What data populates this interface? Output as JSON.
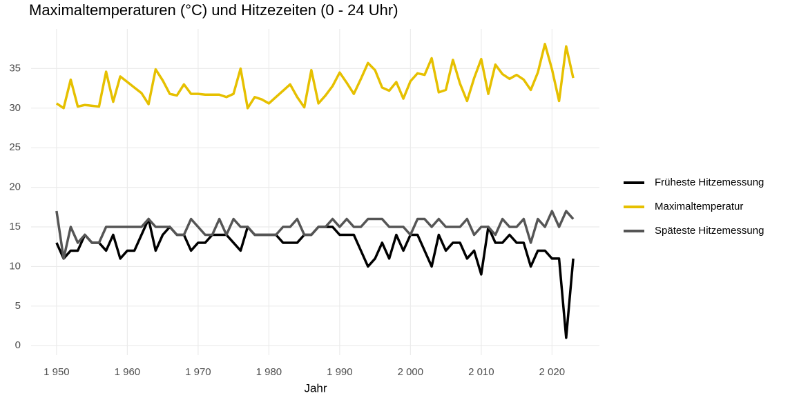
{
  "chart_data": {
    "type": "line",
    "title": "Maximaltemperaturen (°C) und Hitzezeiten (0 - 24 Uhr)",
    "x_label": "Jahr",
    "x": [
      1950,
      1951,
      1952,
      1953,
      1954,
      1955,
      1956,
      1957,
      1958,
      1959,
      1960,
      1961,
      1962,
      1963,
      1964,
      1965,
      1966,
      1967,
      1968,
      1969,
      1970,
      1971,
      1972,
      1973,
      1974,
      1975,
      1976,
      1977,
      1978,
      1979,
      1980,
      1981,
      1982,
      1983,
      1984,
      1985,
      1986,
      1987,
      1988,
      1989,
      1990,
      1991,
      1992,
      1993,
      1994,
      1995,
      1996,
      1997,
      1998,
      1999,
      2000,
      2001,
      2002,
      2003,
      2004,
      2005,
      2006,
      2007,
      2008,
      2009,
      2010,
      2011,
      2012,
      2013,
      2014,
      2015,
      2016,
      2017,
      2018,
      2019,
      2020,
      2021,
      2022,
      2023
    ],
    "series": [
      {
        "name": "Früheste Hitzemessung",
        "color": "#000000",
        "values": [
          13,
          11,
          12,
          12,
          14,
          13,
          13,
          12,
          14,
          11,
          12,
          12,
          14,
          16,
          12,
          14,
          15,
          14,
          14,
          12,
          13,
          13,
          14,
          14,
          14,
          13,
          12,
          15,
          14,
          14,
          14,
          14,
          13,
          13,
          13,
          14,
          14,
          15,
          15,
          15,
          14,
          14,
          14,
          12,
          10,
          11,
          13,
          11,
          14,
          12,
          14,
          14,
          12,
          10,
          14,
          12,
          13,
          13,
          11,
          12,
          9,
          15,
          13,
          13,
          14,
          13,
          13,
          10,
          12,
          12,
          11,
          11,
          1,
          11
        ]
      },
      {
        "name": "Maximaltemperatur",
        "color": "#e6c000",
        "values": [
          30.6,
          30.0,
          33.6,
          30.2,
          30.4,
          30.3,
          30.2,
          34.6,
          30.8,
          34.0,
          33.3,
          32.6,
          31.9,
          30.5,
          34.9,
          33.5,
          31.8,
          31.6,
          33.0,
          31.8,
          31.8,
          31.7,
          31.7,
          31.7,
          31.4,
          31.8,
          35.0,
          30.0,
          31.4,
          31.1,
          30.6,
          31.4,
          32.2,
          33.0,
          31.4,
          30.1,
          34.8,
          30.6,
          31.6,
          32.8,
          34.5,
          33.2,
          31.8,
          33.7,
          35.7,
          34.8,
          32.6,
          32.2,
          33.3,
          31.2,
          33.4,
          34.4,
          34.2,
          36.3,
          32.0,
          32.3,
          36.1,
          33.1,
          30.9,
          33.8,
          36.2,
          31.8,
          35.5,
          34.3,
          33.7,
          34.2,
          33.6,
          32.3,
          34.5,
          38.1,
          34.9,
          30.9,
          37.8,
          33.8
        ]
      },
      {
        "name": "Späteste Hitzemessung",
        "color": "#555555",
        "values": [
          17,
          11,
          15,
          13,
          14,
          13,
          13,
          15,
          15,
          15,
          15,
          15,
          15,
          16,
          15,
          15,
          15,
          14,
          14,
          16,
          15,
          14,
          14,
          16,
          14,
          16,
          15,
          15,
          14,
          14,
          14,
          14,
          15,
          15,
          16,
          14,
          14,
          15,
          15,
          16,
          15,
          16,
          15,
          15,
          16,
          16,
          16,
          15,
          15,
          15,
          14,
          16,
          16,
          15,
          16,
          15,
          15,
          15,
          16,
          14,
          15,
          15,
          14,
          16,
          15,
          15,
          16,
          13,
          16,
          15,
          17,
          15,
          17,
          16
        ]
      }
    ],
    "xlim": [
      1946.4,
      2026.7
    ],
    "xticks": [
      {
        "value": 1950,
        "label": "1 950"
      },
      {
        "value": 1960,
        "label": "1 960"
      },
      {
        "value": 1970,
        "label": "1 970"
      },
      {
        "value": 1980,
        "label": "1 980"
      },
      {
        "value": 1990,
        "label": "1 990"
      },
      {
        "value": 2000,
        "label": "2 000"
      },
      {
        "value": 2010,
        "label": "2 010"
      },
      {
        "value": 2020,
        "label": "2 020"
      }
    ],
    "ylim": [
      -1.2,
      40
    ],
    "yticks": [
      0,
      5,
      10,
      15,
      20,
      25,
      30,
      35
    ],
    "grid": true,
    "legend": "right"
  }
}
